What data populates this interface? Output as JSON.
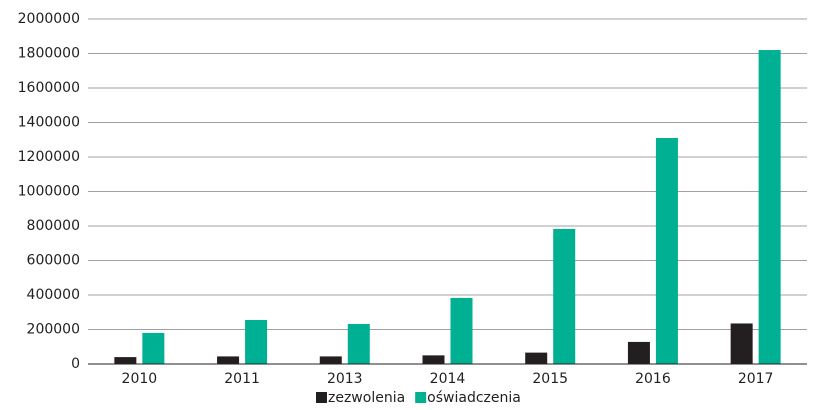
{
  "chart_data": {
    "type": "bar",
    "categories": [
      "2010",
      "2011",
      "2013",
      "2014",
      "2015",
      "2016",
      "2017"
    ],
    "series": [
      {
        "name": "zezwolenia",
        "color": "#231f20",
        "values": [
          40000,
          44000,
          44000,
          50000,
          66000,
          128000,
          235000
        ]
      },
      {
        "name": "oświadczenia",
        "color": "#00b092",
        "values": [
          180000,
          255000,
          232000,
          383000,
          783000,
          1310000,
          1820000
        ]
      }
    ],
    "ylim": [
      0,
      2000000
    ],
    "yticks": [
      0,
      200000,
      400000,
      600000,
      800000,
      1000000,
      1200000,
      1400000,
      1600000,
      1800000,
      2000000
    ],
    "grid": true,
    "legend": "bottom"
  }
}
